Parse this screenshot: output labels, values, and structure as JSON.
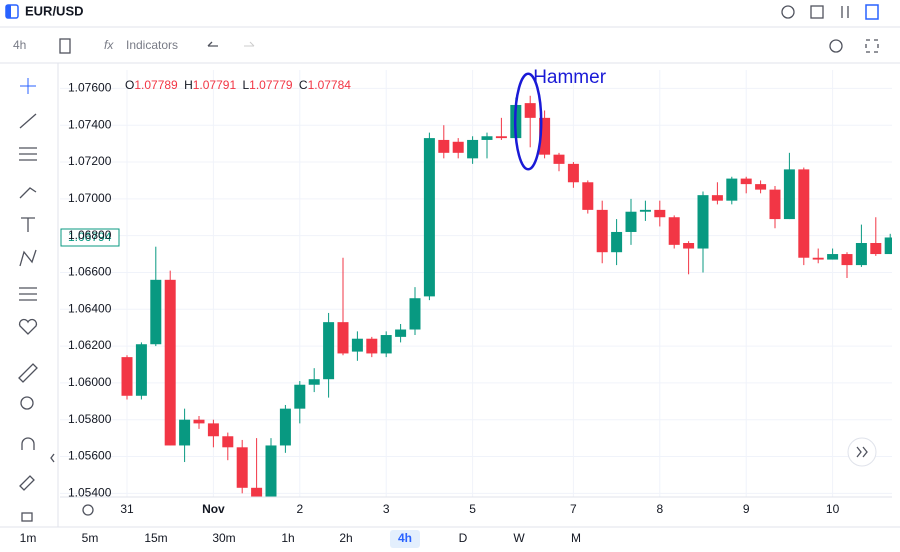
{
  "header": {
    "symbol": "EUR/USD"
  },
  "toolbar": {
    "interval": "4h",
    "indicators": "Indicators"
  },
  "timeframes": [
    "1m",
    "5m",
    "15m",
    "30m",
    "1h",
    "2h",
    "4h",
    "D",
    "W",
    "M"
  ],
  "active_timeframe": 6,
  "chart_data": {
    "type": "candlestick",
    "legend": {
      "o": "O",
      "o_value": "1.07789",
      "h": "H",
      "h_value": "1.07791",
      "l": "L",
      "l_value": "1.07779",
      "c": "C",
      "c_value": "1.07784"
    },
    "price_label": "1.06794",
    "annotation": "Hammer",
    "annotation_index": 28,
    "up_color": "#089981",
    "down_color": "#f23645",
    "annotation_color": "#1a1ad6",
    "categories": [
      "31",
      null,
      null,
      null,
      null,
      null,
      "Nov",
      null,
      null,
      null,
      null,
      null,
      "2",
      null,
      null,
      null,
      null,
      null,
      "3",
      null,
      null,
      null,
      null,
      null,
      "5",
      null,
      null,
      null,
      null,
      null,
      null,
      "7",
      null,
      null,
      null,
      null,
      null,
      "8",
      null,
      null,
      null,
      null,
      null,
      "9",
      null,
      null,
      null,
      null,
      null,
      "10",
      null,
      null,
      null,
      null
    ],
    "series": [
      {
        "name": "open",
        "values": [
          1.0614,
          1.0593,
          1.0621,
          1.0656,
          1.0566,
          1.058,
          1.0578,
          1.0571,
          1.0565,
          1.0543,
          1.0538,
          1.0566,
          1.0586,
          1.0599,
          1.0602,
          1.0633,
          1.0617,
          1.0624,
          1.0616,
          1.0625,
          1.0629,
          1.0647,
          1.0732,
          1.0731,
          1.0722,
          1.0732,
          1.0734,
          1.0733,
          1.0752,
          1.0744,
          1.0724,
          1.0719,
          1.0709,
          1.0694,
          1.0671,
          1.0682,
          1.0693,
          1.0694,
          1.069,
          1.0676,
          1.0673,
          1.0702,
          1.0699,
          1.0711,
          1.0708,
          1.0705,
          1.0689,
          1.0716,
          1.0668,
          1.0667,
          1.067,
          1.0664,
          1.0676,
          1.067
        ]
      },
      {
        "name": "high",
        "values": [
          1.0615,
          1.0622,
          1.0674,
          1.0661,
          1.0586,
          1.0582,
          1.058,
          1.0573,
          1.0569,
          1.057,
          1.057,
          1.0588,
          1.0601,
          1.0608,
          1.0638,
          1.0668,
          1.0628,
          1.0625,
          1.0628,
          1.0632,
          1.0652,
          1.0736,
          1.074,
          1.0733,
          1.0734,
          1.0736,
          1.0744,
          1.0755,
          1.0756,
          1.0748,
          1.0725,
          1.072,
          1.071,
          1.0699,
          1.0689,
          1.07,
          1.0699,
          1.0699,
          1.0691,
          1.0677,
          1.0704,
          1.0709,
          1.0712,
          1.0712,
          1.071,
          1.0707,
          1.0725,
          1.0717,
          1.0673,
          1.0673,
          1.0671,
          1.0686,
          1.069,
          1.0681
        ]
      },
      {
        "name": "low",
        "values": [
          1.0591,
          1.0591,
          1.062,
          1.0566,
          1.0557,
          1.0575,
          1.0565,
          1.0558,
          1.054,
          1.0535,
          1.0535,
          1.0562,
          1.0578,
          1.0595,
          1.0592,
          1.0615,
          1.0612,
          1.0614,
          1.0614,
          1.0622,
          1.0626,
          1.0645,
          1.0722,
          1.0722,
          1.0719,
          1.0722,
          1.0732,
          1.0732,
          1.0728,
          1.0722,
          1.0715,
          1.0706,
          1.0692,
          1.0665,
          1.0664,
          1.0675,
          1.0688,
          1.0685,
          1.0673,
          1.0659,
          1.066,
          1.0697,
          1.0697,
          1.0703,
          1.0703,
          1.0684,
          1.0689,
          1.0664,
          1.0665,
          1.0667,
          1.0657,
          1.0663,
          1.0669,
          1.067
        ]
      },
      {
        "name": "close",
        "values": [
          1.0593,
          1.0621,
          1.0656,
          1.0566,
          1.058,
          1.0578,
          1.0571,
          1.0565,
          1.0543,
          1.0538,
          1.0566,
          1.0586,
          1.0599,
          1.0602,
          1.0633,
          1.0616,
          1.0624,
          1.0616,
          1.0626,
          1.0629,
          1.0646,
          1.0733,
          1.0725,
          1.0725,
          1.0732,
          1.0734,
          1.0733,
          1.0751,
          1.0744,
          1.0724,
          1.0719,
          1.0709,
          1.0694,
          1.0671,
          1.0682,
          1.0693,
          1.0694,
          1.069,
          1.0675,
          1.0673,
          1.0702,
          1.0699,
          1.0711,
          1.0708,
          1.0705,
          1.0689,
          1.0716,
          1.0668,
          1.0667,
          1.067,
          1.0664,
          1.0676,
          1.067,
          1.0679
        ]
      }
    ],
    "ylim": [
      1.0538,
      1.077
    ],
    "yticks": [
      {
        "value": 1.076,
        "label": "1.07600"
      },
      {
        "value": 1.074,
        "label": "1.07400"
      },
      {
        "value": 1.072,
        "label": "1.07200"
      },
      {
        "value": 1.07,
        "label": "1.07000"
      },
      {
        "value": 1.068,
        "label": "1.06800"
      },
      {
        "value": 1.066,
        "label": "1.06600"
      },
      {
        "value": 1.064,
        "label": "1.06400"
      },
      {
        "value": 1.062,
        "label": "1.06200"
      },
      {
        "value": 1.06,
        "label": "1.06000"
      },
      {
        "value": 1.058,
        "label": "1.05800"
      },
      {
        "value": 1.056,
        "label": "1.05600"
      },
      {
        "value": 1.054,
        "label": "1.05400"
      }
    ],
    "grid": true
  }
}
